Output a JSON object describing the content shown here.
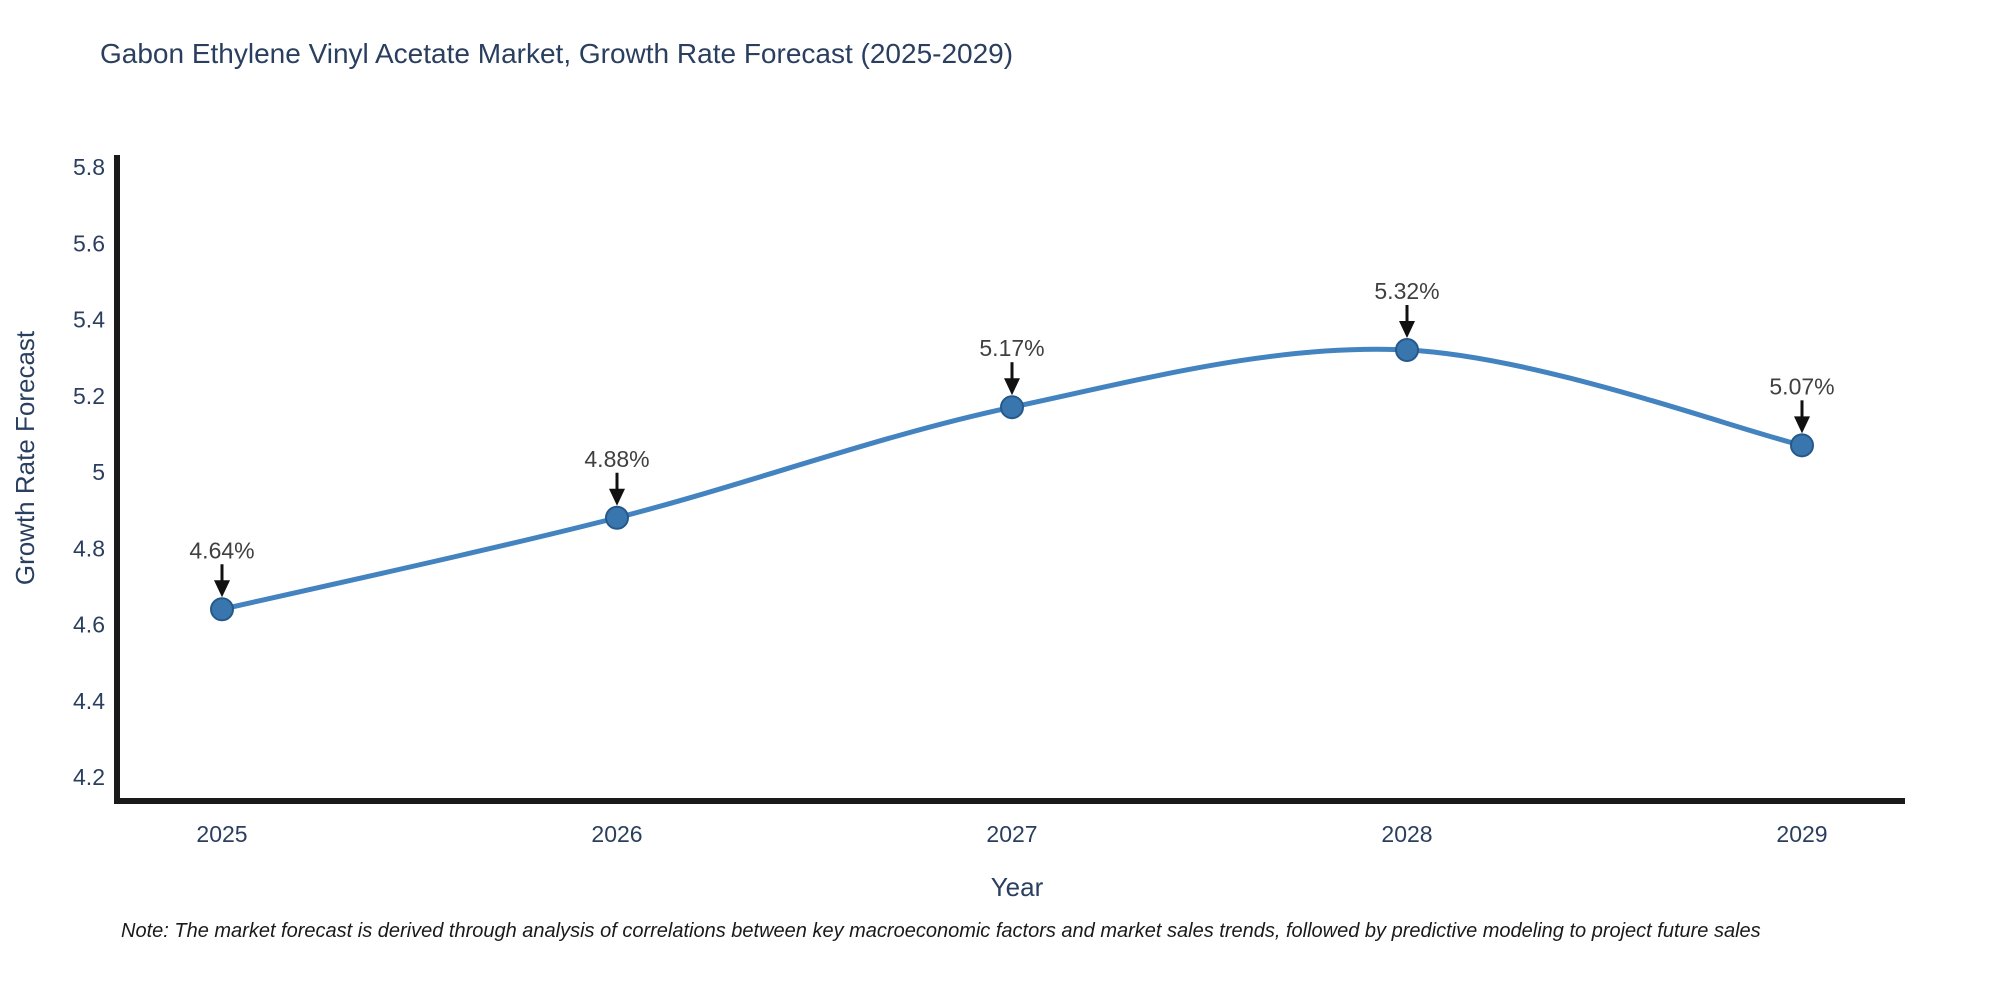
{
  "title": "Gabon Ethylene Vinyl Acetate Market, Growth Rate Forecast (2025-2029)",
  "note": "Note: The market forecast is derived through analysis of correlations between key macroeconomic factors and market sales trends, followed by predictive modeling to project future sales",
  "chart_data": {
    "type": "line",
    "title": "Gabon Ethylene Vinyl Acetate Market, Growth Rate Forecast (2025-2029)",
    "xlabel": "Year",
    "ylabel": "Growth Rate Forecast",
    "x": [
      2025,
      2026,
      2027,
      2028,
      2029
    ],
    "series": [
      {
        "name": "Growth Rate Forecast",
        "values": [
          4.64,
          4.88,
          5.17,
          5.32,
          5.07
        ],
        "point_labels": [
          "4.64%",
          "4.88%",
          "5.17%",
          "5.32%",
          "5.07%"
        ]
      }
    ],
    "xtick_labels": [
      "2025",
      "2026",
      "2027",
      "2028",
      "2029"
    ],
    "ytick_labels": [
      "4.2",
      "4.4",
      "4.6",
      "4.8",
      "5",
      "5.2",
      "5.4",
      "5.6",
      "5.8"
    ],
    "yticks": [
      4.2,
      4.4,
      4.6,
      4.8,
      5.0,
      5.2,
      5.4,
      5.6,
      5.8
    ],
    "ylim": [
      4.2,
      5.8
    ],
    "grid": false,
    "legend_position": "none",
    "annotations_have_arrows": true,
    "colors": {
      "line": "#4383c0",
      "marker_fill": "#3a76ae",
      "marker_edge": "#25598c",
      "axis": "#1a1a1a",
      "tick_text": "#2a3f5f",
      "title_text": "#2a3f5f",
      "annotation_text": "#404040",
      "arrow": "#111111",
      "background": "#ffffff"
    }
  }
}
